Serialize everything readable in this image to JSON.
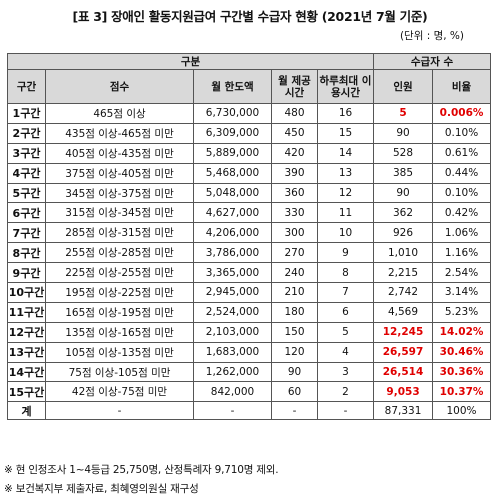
{
  "title": "[표 3] 장애인 활동지원급여 구간별 수급자 현황 (2021년 7월 기준)",
  "unit": "(단위 : 명, %)",
  "header": {
    "gubun": "구분",
    "recipients": "수급자 수",
    "section": "구간",
    "score": "점수",
    "limit": "월 한도액",
    "hours": "월 제공 시간",
    "daily_max": "하루최대 이용시간",
    "people": "인원",
    "ratio": "비율"
  },
  "rows": [
    {
      "section": "1구간",
      "score": "465점 이상",
      "limit": "6,730,000",
      "hours": "480",
      "daily": "16",
      "people": "5",
      "ratio": "0.006%",
      "highlight": true
    },
    {
      "section": "2구간",
      "score": "435점 이상-465점 미만",
      "limit": "6,309,000",
      "hours": "450",
      "daily": "15",
      "people": "90",
      "ratio": "0.10%",
      "highlight": false
    },
    {
      "section": "3구간",
      "score": "405점 이상-435점 미만",
      "limit": "5,889,000",
      "hours": "420",
      "daily": "14",
      "people": "528",
      "ratio": "0.61%",
      "highlight": false
    },
    {
      "section": "4구간",
      "score": "375점 이상-405점 미만",
      "limit": "5,468,000",
      "hours": "390",
      "daily": "13",
      "people": "385",
      "ratio": "0.44%",
      "highlight": false
    },
    {
      "section": "5구간",
      "score": "345점 이상-375점 미만",
      "limit": "5,048,000",
      "hours": "360",
      "daily": "12",
      "people": "90",
      "ratio": "0.10%",
      "highlight": false
    },
    {
      "section": "6구간",
      "score": "315점 이상-345점 미만",
      "limit": "4,627,000",
      "hours": "330",
      "daily": "11",
      "people": "362",
      "ratio": "0.42%",
      "highlight": false
    },
    {
      "section": "7구간",
      "score": "285점 이상-315점 미만",
      "limit": "4,206,000",
      "hours": "300",
      "daily": "10",
      "people": "926",
      "ratio": "1.06%",
      "highlight": false
    },
    {
      "section": "8구간",
      "score": "255점 이상-285점 미만",
      "limit": "3,786,000",
      "hours": "270",
      "daily": "9",
      "people": "1,010",
      "ratio": "1.16%",
      "highlight": false
    },
    {
      "section": "9구간",
      "score": "225점 이상-255점 미만",
      "limit": "3,365,000",
      "hours": "240",
      "daily": "8",
      "people": "2,215",
      "ratio": "2.54%",
      "highlight": false
    },
    {
      "section": "10구간",
      "score": "195점 이상-225점 미만",
      "limit": "2,945,000",
      "hours": "210",
      "daily": "7",
      "people": "2,742",
      "ratio": "3.14%",
      "highlight": false
    },
    {
      "section": "11구간",
      "score": "165점 이상-195점 미만",
      "limit": "2,524,000",
      "hours": "180",
      "daily": "6",
      "people": "4,569",
      "ratio": "5.23%",
      "highlight": false
    },
    {
      "section": "12구간",
      "score": "135점 이상-165점 미만",
      "limit": "2,103,000",
      "hours": "150",
      "daily": "5",
      "people": "12,245",
      "ratio": "14.02%",
      "highlight": true
    },
    {
      "section": "13구간",
      "score": "105점 이상-135점 미만",
      "limit": "1,683,000",
      "hours": "120",
      "daily": "4",
      "people": "26,597",
      "ratio": "30.46%",
      "highlight": true
    },
    {
      "section": "14구간",
      "score": "75점 이상-105점 미만",
      "limit": "1,262,000",
      "hours": "90",
      "daily": "3",
      "people": "26,514",
      "ratio": "30.36%",
      "highlight": true
    },
    {
      "section": "15구간",
      "score": "42점 이상-75점 미만",
      "limit": "842,000",
      "hours": "60",
      "daily": "2",
      "people": "9,053",
      "ratio": "10.37%",
      "highlight": true
    }
  ],
  "total": {
    "section": "계",
    "score": "-",
    "limit": "-",
    "hours": "-",
    "daily": "-",
    "people": "87,331",
    "ratio": "100%"
  },
  "footnotes": [
    "※ 현 인정조사 1~4등급 25,750명, 산정특례자 9,710명 제외.",
    "※ 보건복지부 제출자료, 최혜영의원실 재구성"
  ]
}
